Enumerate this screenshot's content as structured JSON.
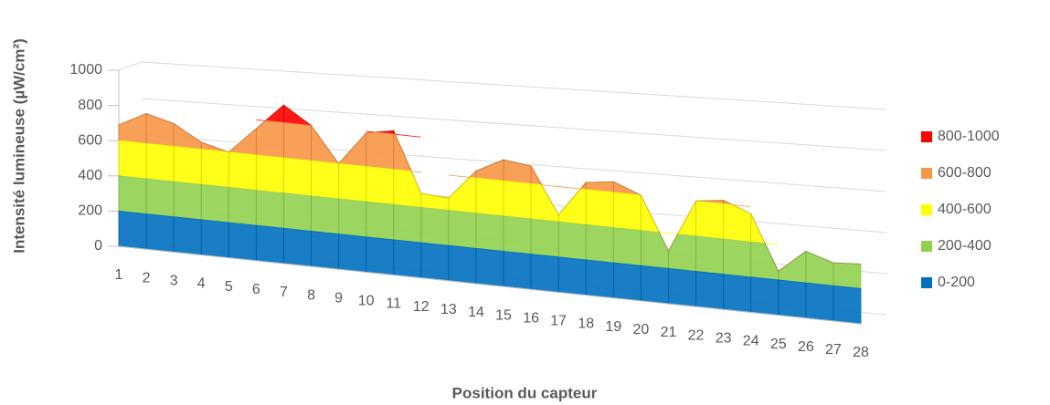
{
  "chart_data": {
    "type": "surface",
    "y_label": "Intensité lumineuse (µW/cm²)",
    "x_label": "Position du capteur",
    "categories": [
      "1",
      "2",
      "3",
      "4",
      "5",
      "6",
      "7",
      "8",
      "9",
      "10",
      "11",
      "12",
      "13",
      "14",
      "15",
      "16",
      "17",
      "18",
      "19",
      "20",
      "21",
      "22",
      "23",
      "24",
      "25",
      "26",
      "27",
      "28"
    ],
    "values": [
      690,
      770,
      730,
      640,
      600,
      750,
      900,
      800,
      600,
      790,
      820,
      480,
      470,
      640,
      720,
      700,
      440,
      640,
      660,
      600,
      300,
      600,
      620,
      560,
      250,
      380,
      330,
      340
    ],
    "ylim": [
      0,
      1000
    ],
    "yticks": [
      0,
      200,
      400,
      600,
      800,
      1000
    ],
    "grid": true,
    "legend_position": "right",
    "bands": [
      {
        "name": "800-1000",
        "color": "#ff0000"
      },
      {
        "name": "600-800",
        "color": "#f79646"
      },
      {
        "name": "400-600",
        "color": "#ffff00"
      },
      {
        "name": "200-400",
        "color": "#92d050"
      },
      {
        "name": "0-200",
        "color": "#0070c0"
      }
    ]
  }
}
